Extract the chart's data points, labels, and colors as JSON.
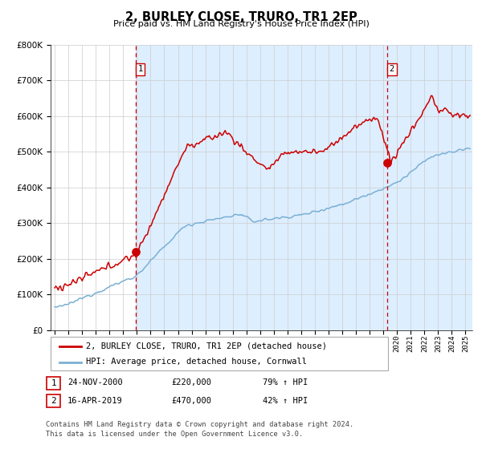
{
  "title": "2, BURLEY CLOSE, TRURO, TR1 2EP",
  "subtitle": "Price paid vs. HM Land Registry's House Price Index (HPI)",
  "property_label": "2, BURLEY CLOSE, TRURO, TR1 2EP (detached house)",
  "hpi_label": "HPI: Average price, detached house, Cornwall",
  "transaction1": {
    "label": "1",
    "date": "24-NOV-2000",
    "price": 220000,
    "change": "79% ↑ HPI"
  },
  "transaction2": {
    "label": "2",
    "date": "16-APR-2019",
    "price": 470000,
    "change": "42% ↑ HPI"
  },
  "footer": "Contains HM Land Registry data © Crown copyright and database right 2024.\nThis data is licensed under the Open Government Licence v3.0.",
  "property_color": "#cc0000",
  "hpi_color": "#7ab0d4",
  "background_color": "#ddeeff",
  "ylim": [
    0,
    800000
  ],
  "yticks": [
    0,
    100000,
    200000,
    300000,
    400000,
    500000,
    600000,
    700000,
    800000
  ],
  "xlim_start": 1994.7,
  "xlim_end": 2025.5,
  "vline1_x": 2000.9,
  "vline2_x": 2019.29,
  "marker1_x": 2000.9,
  "marker1_y": 220000,
  "marker2_x": 2019.29,
  "marker2_y": 470000
}
